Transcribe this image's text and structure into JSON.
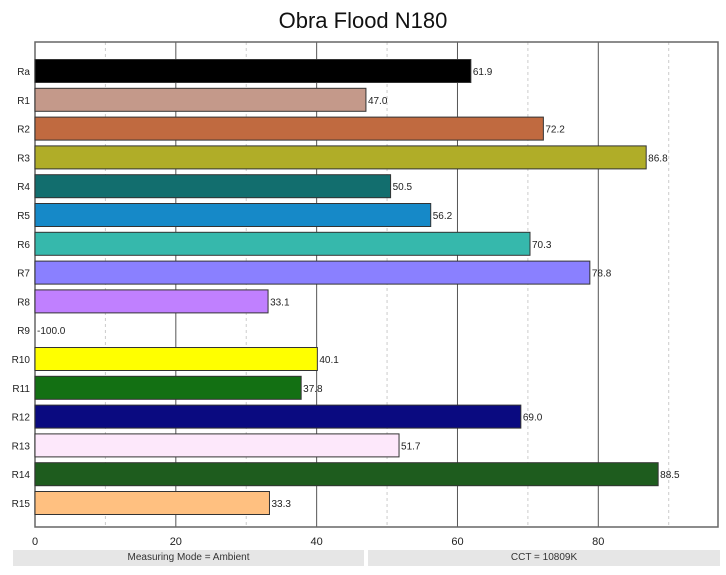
{
  "chart_data": {
    "type": "bar",
    "orientation": "horizontal",
    "title": "Obra Flood N180",
    "categories": [
      "Ra",
      "R1",
      "R2",
      "R3",
      "R4",
      "R5",
      "R6",
      "R7",
      "R8",
      "R9",
      "R10",
      "R11",
      "R12",
      "R13",
      "R14",
      "R15"
    ],
    "values": [
      61.9,
      47.0,
      72.2,
      86.8,
      50.5,
      56.2,
      70.3,
      78.8,
      33.1,
      -100.0,
      40.1,
      37.8,
      69.0,
      51.7,
      88.5,
      33.3
    ],
    "data_labels": [
      "61.9",
      "47.0",
      "72.2",
      "86.8",
      "50.5",
      "56.2",
      "70.3",
      "78.8",
      "33.1",
      "-100.0",
      "40.1",
      "37.8",
      "69.0",
      "51.7",
      "88.5",
      "33.3"
    ],
    "colors": [
      "#000000",
      "#c4998a",
      "#c06a40",
      "#b0ad28",
      "#126e6e",
      "#1689c8",
      "#36b8ac",
      "#8a80ff",
      "#c080ff",
      "#ffffff",
      "#ffff00",
      "#137013",
      "#0a0a80",
      "#fde8fb",
      "#1e5c1e",
      "#ffc080"
    ],
    "xlim": [
      0,
      97
    ],
    "xticks": [
      0,
      20,
      40,
      60,
      80
    ],
    "xtick_labels": [
      "0",
      "20",
      "40",
      "60",
      "80"
    ],
    "minor_gridlines": [
      10,
      30,
      50,
      70,
      90
    ],
    "grid": true,
    "xlabel": "",
    "ylabel": ""
  },
  "footer": {
    "left": "Measuring Mode = Ambient",
    "right": "CCT = 10809K"
  }
}
